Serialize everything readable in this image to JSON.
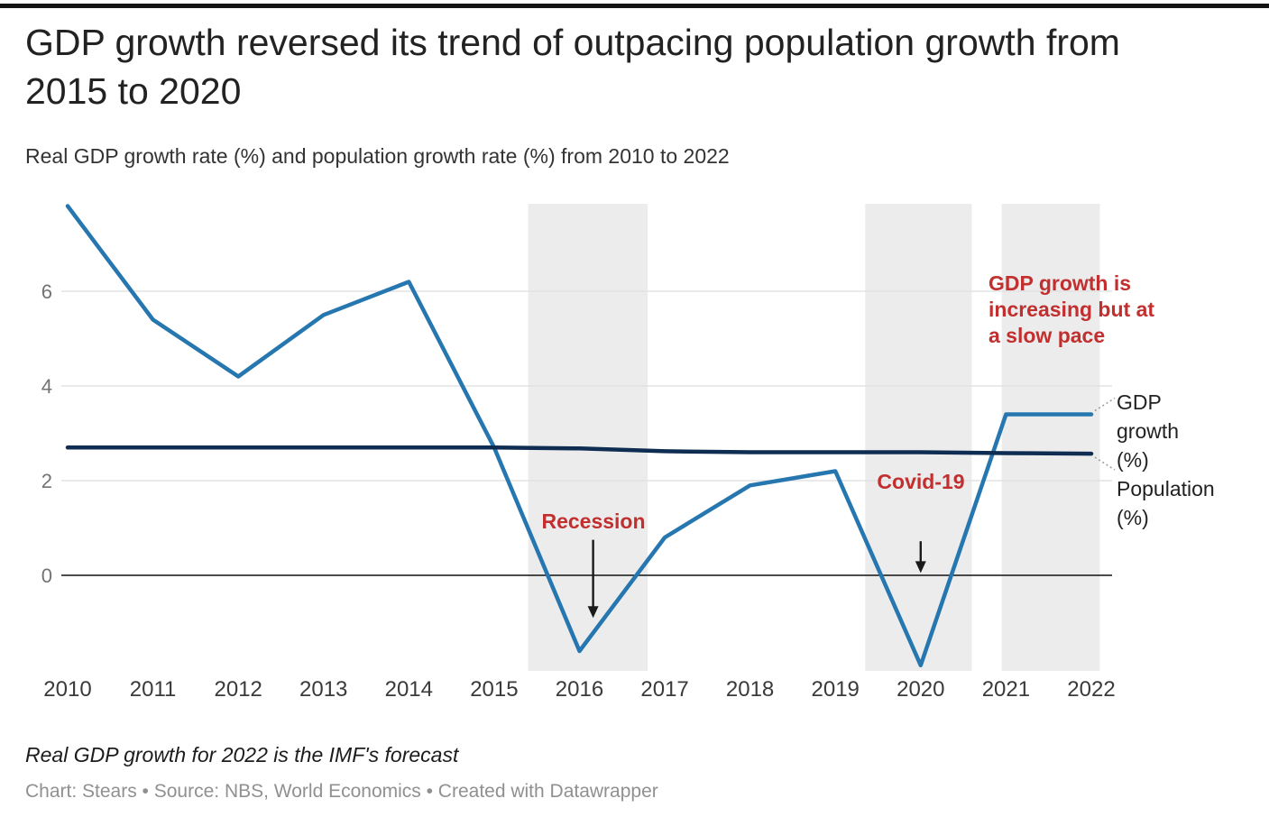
{
  "chart_data": {
    "type": "line",
    "title": "GDP growth reversed its trend of outpacing population growth from 2015 to 2020",
    "subtitle": "Real GDP growth rate (%) and population growth rate (%) from 2010 to 2022",
    "note": "Real GDP growth for 2022 is the IMF's forecast",
    "byline": "Chart: Stears • Source: NBS, World Economics • Created with Datawrapper",
    "x": [
      2010,
      2011,
      2012,
      2013,
      2014,
      2015,
      2016,
      2017,
      2018,
      2019,
      2020,
      2021,
      2022
    ],
    "series": [
      {
        "name": "GDP growth (%)",
        "label": "GDP growth (%)",
        "color": "#2676b0",
        "values": [
          7.8,
          5.4,
          4.2,
          5.5,
          6.2,
          2.7,
          -1.6,
          0.8,
          1.9,
          2.2,
          -1.9,
          3.4,
          3.4
        ]
      },
      {
        "name": "Population (%)",
        "label": "Population (%)",
        "color": "#0f2d52",
        "values": [
          2.7,
          2.7,
          2.7,
          2.7,
          2.7,
          2.7,
          2.68,
          2.62,
          2.6,
          2.6,
          2.6,
          2.58,
          2.57
        ]
      }
    ],
    "y_ticks": [
      0,
      2,
      4,
      6
    ],
    "ylim": [
      -2.1,
      7.9
    ],
    "grid": "horizontal",
    "legend_position": "right-inline",
    "shaded_bands": [
      {
        "from": 2015.4,
        "to": 2016.8
      },
      {
        "from": 2019.35,
        "to": 2020.6
      },
      {
        "from": 2020.95,
        "to": 2022.1
      }
    ],
    "annotations": [
      {
        "text": "Recession",
        "color": "#c22f2f",
        "arrow": {
          "x": 2016.16,
          "from": 0.75,
          "to": -0.9
        }
      },
      {
        "text": "Covid-19",
        "color": "#c22f2f",
        "arrow": {
          "x": 2020,
          "from": 0.72,
          "to": 0.05
        }
      },
      {
        "text": "GDP growth is increasing but at a slow pace",
        "color": "#c22f2f"
      }
    ],
    "colors": {
      "band": "#ececec",
      "grid": "#dedede",
      "zero_line": "#111111",
      "tick_label": "#737373",
      "axis_label": "#3a3a3a",
      "arrow": "#1a1a1a",
      "connector": "#999999"
    }
  }
}
